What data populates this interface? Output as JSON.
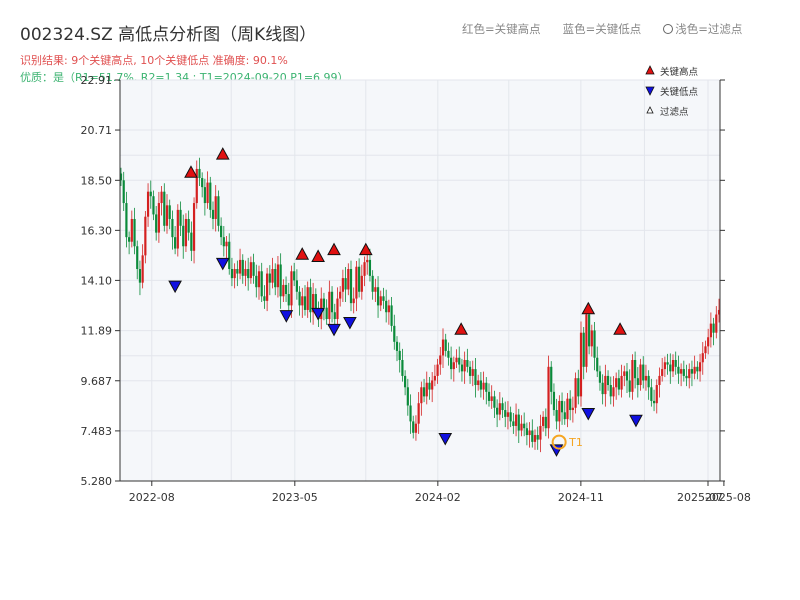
{
  "title": "002324.SZ 高低点分析图（周K线图）",
  "subtitle_result": "识别结果: 9个关键高点, 10个关键低点   准确度: 90.1%",
  "subtitle_quality": "优质：是（R1=51.7%, R2=1.34 ; T1=2024-09-20 P1=6.99）",
  "top_legend": {
    "red": "红色=关键高点",
    "blue": "蓝色=关键低点",
    "light": "浅色=过滤点"
  },
  "colors": {
    "up": "#d42020",
    "down": "#0a8a3a",
    "high_marker": "#e01010",
    "low_marker": "#1010e0",
    "t1": "#f5a623",
    "plot_bg": "#f5f7fa",
    "grid": "#e3e6ec"
  },
  "chart_data": {
    "type": "candlestick",
    "y_ticks": [
      "5.280",
      "7.483",
      "9.687",
      "11.89",
      "14.10",
      "16.30",
      "18.50",
      "20.71",
      "22.91"
    ],
    "ylim": [
      5.28,
      22.91
    ],
    "x_ticks": [
      "2022-08",
      "2023-05",
      "2024-02",
      "2024-11",
      "2025-07",
      "2025-08"
    ],
    "legend": [
      {
        "symbol": "triangle-up",
        "label": "关键高点"
      },
      {
        "symbol": "triangle-down",
        "label": "关键低点"
      },
      {
        "symbol": "triangle-up-hollow",
        "label": "过滤点"
      }
    ],
    "closes": [
      18.5,
      17.5,
      16.0,
      15.8,
      16.8,
      15.6,
      14.6,
      14.0,
      15.2,
      16.9,
      18.0,
      17.8,
      17.0,
      16.2,
      17.5,
      18.0,
      16.5,
      17.4,
      16.8,
      16.0,
      15.5,
      17.2,
      16.5,
      15.6,
      16.8,
      16.2,
      15.4,
      17.5,
      19.0,
      18.6,
      18.2,
      17.5,
      18.4,
      17.2,
      16.8,
      17.8,
      16.5,
      16.0,
      15.6,
      15.8,
      14.6,
      14.2,
      14.6,
      14.4,
      15.0,
      14.3,
      14.6,
      14.2,
      14.9,
      14.3,
      13.8,
      14.5,
      13.4,
      13.2,
      14.4,
      14.0,
      14.6,
      13.8,
      14.8,
      13.4,
      13.9,
      13.5,
      13.0,
      14.5,
      14.1,
      13.6,
      13.0,
      13.4,
      12.8,
      13.8,
      12.7,
      13.5,
      12.8,
      12.4,
      13.3,
      12.9,
      12.4,
      13.6,
      12.7,
      12.4,
      13.3,
      13.6,
      14.2,
      13.7,
      14.6,
      13.1,
      13.3,
      14.7,
      13.6,
      14.3,
      14.9,
      15.0,
      14.3,
      13.6,
      13.8,
      13.0,
      13.4,
      13.2,
      12.7,
      13.0,
      12.1,
      11.4,
      11.0,
      10.6,
      9.9,
      9.4,
      8.6,
      7.9,
      7.4,
      7.8,
      8.7,
      9.4,
      9.0,
      9.6,
      9.3,
      9.7,
      9.9,
      10.4,
      10.8,
      11.5,
      11.0,
      10.7,
      10.2,
      10.5,
      10.7,
      10.4,
      10.1,
      10.6,
      10.3,
      9.9,
      10.2,
      9.5,
      9.7,
      9.3,
      9.6,
      9.2,
      8.8,
      9.0,
      8.5,
      8.2,
      8.7,
      8.4,
      8.1,
      8.3,
      7.9,
      7.7,
      8.2,
      7.5,
      7.8,
      7.6,
      7.3,
      7.5,
      7.0,
      7.3,
      7.1,
      7.7,
      8.1,
      7.6,
      10.3,
      9.2,
      8.4,
      7.9,
      8.8,
      8.3,
      8.0,
      8.9,
      8.4,
      8.5,
      9.8,
      9.0,
      11.8,
      10.3,
      12.6,
      11.2,
      11.9,
      10.7,
      10.1,
      9.6,
      9.1,
      9.9,
      9.5,
      9.0,
      9.4,
      9.8,
      9.3,
      9.9,
      10.1,
      9.7,
      9.2,
      10.6,
      9.8,
      9.5,
      10.4,
      9.7,
      9.9,
      9.4,
      8.8,
      8.7,
      9.5,
      9.9,
      10.2,
      10.5,
      10.4,
      10.1,
      10.6,
      10.3,
      10.0,
      10.2,
      9.9,
      9.8,
      10.2,
      10.0,
      10.3,
      10.1,
      10.5,
      10.9,
      11.2,
      11.6,
      12.2,
      11.8,
      12.6,
      12.8
    ],
    "key_highs": [
      {
        "date": "2022-10",
        "price": 18.5
      },
      {
        "date": "2022-12",
        "price": 19.3
      },
      {
        "date": "2023-05",
        "price": 14.9
      },
      {
        "date": "2023-06",
        "price": 14.8
      },
      {
        "date": "2023-07",
        "price": 15.1
      },
      {
        "date": "2023-09",
        "price": 15.1
      },
      {
        "date": "2024-03",
        "price": 11.6
      },
      {
        "date": "2024-11",
        "price": 12.5
      },
      {
        "date": "2025-01",
        "price": 11.6
      }
    ],
    "key_lows": [
      {
        "date": "2022-09",
        "price": 14.2
      },
      {
        "date": "2022-12",
        "price": 15.2
      },
      {
        "date": "2023-04",
        "price": 12.9
      },
      {
        "date": "2023-06",
        "price": 13.0
      },
      {
        "date": "2023-07",
        "price": 12.3
      },
      {
        "date": "2023-08",
        "price": 12.6
      },
      {
        "date": "2024-02",
        "price": 7.5
      },
      {
        "date": "2024-09",
        "price": 7.0
      },
      {
        "date": "2024-11",
        "price": 8.6
      },
      {
        "date": "2025-02",
        "price": 8.3
      }
    ],
    "t1": {
      "label": "T1",
      "date": "2024-09-20",
      "price": 6.99
    }
  }
}
